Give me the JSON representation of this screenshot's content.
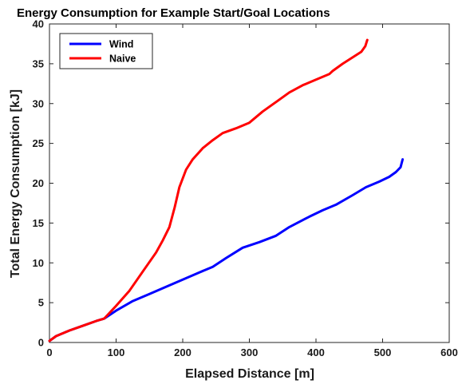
{
  "chart_data": {
    "type": "line",
    "title": "Energy Consumption for Example Start/Goal Locations",
    "xlabel": "Elapsed Distance [m]",
    "ylabel": "Total Energy Consumption [kJ]",
    "xlim": [
      0,
      600
    ],
    "ylim": [
      0,
      40
    ],
    "xticks": [
      0,
      100,
      200,
      300,
      400,
      500,
      600
    ],
    "yticks": [
      0,
      5,
      10,
      15,
      20,
      25,
      30,
      35,
      40
    ],
    "grid": false,
    "legend_position": "top-left",
    "series": [
      {
        "name": "Wind",
        "color": "#0000ff",
        "x": [
          0,
          10,
          30,
          50,
          70,
          82,
          100,
          125,
          150,
          175,
          200,
          225,
          245,
          265,
          290,
          315,
          340,
          360,
          390,
          410,
          430,
          455,
          475,
          495,
          510,
          520,
          527,
          530
        ],
        "y": [
          0.2,
          0.8,
          1.5,
          2.1,
          2.7,
          3.0,
          4.0,
          5.2,
          6.1,
          7.0,
          7.9,
          8.8,
          9.5,
          10.6,
          11.9,
          12.6,
          13.4,
          14.5,
          15.8,
          16.6,
          17.3,
          18.5,
          19.5,
          20.2,
          20.8,
          21.4,
          22.0,
          23.0
        ]
      },
      {
        "name": "Naive",
        "color": "#ff0000",
        "x": [
          0,
          10,
          30,
          50,
          70,
          82,
          100,
          120,
          140,
          160,
          170,
          180,
          188,
          195,
          205,
          215,
          230,
          245,
          260,
          280,
          300,
          320,
          340,
          360,
          380,
          400,
          420,
          425,
          440,
          455,
          468,
          474,
          477
        ],
        "y": [
          0.2,
          0.8,
          1.5,
          2.1,
          2.7,
          3.0,
          4.6,
          6.5,
          8.9,
          11.3,
          12.8,
          14.5,
          17.0,
          19.5,
          21.7,
          23.0,
          24.4,
          25.4,
          26.3,
          26.9,
          27.6,
          29.0,
          30.2,
          31.4,
          32.3,
          33.0,
          33.7,
          34.1,
          35.0,
          35.8,
          36.5,
          37.2,
          38.0
        ]
      }
    ]
  }
}
